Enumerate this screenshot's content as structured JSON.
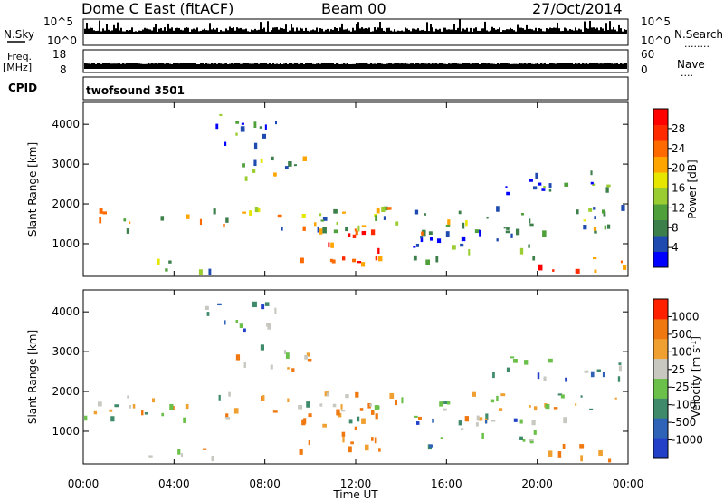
{
  "header": {
    "station": "Dome C East (fitACF)",
    "beam": "Beam 00",
    "date": "27/Oct/2014"
  },
  "left_labels": {
    "nsky": "N.Sky",
    "freq": "Freq.",
    "mhz": "[MHz]",
    "cpid": "CPID"
  },
  "right_labels": {
    "nsearch": "N.Search",
    "nave": "Nave",
    "dots": "........",
    "dots_short": "...."
  },
  "cpid_text": "twofsound 3501",
  "chart_data": [
    {
      "type": "line",
      "name": "noise-strip",
      "y_left_ticks": [
        "10^5",
        "10^0"
      ],
      "y_right_ticks": [
        "10^5",
        "10^0"
      ]
    },
    {
      "type": "line",
      "name": "frequency-strip",
      "y_left_ticks": [
        "18",
        "8"
      ],
      "y_right_ticks": [
        "60",
        "0"
      ]
    },
    {
      "type": "heatmap",
      "name": "power",
      "ylabel": "Slant Range [km]",
      "ylim": [
        180,
        4550
      ],
      "xlim": [
        0,
        24
      ],
      "yticks": [
        "1000",
        "2000",
        "3000",
        "4000"
      ],
      "colorbar": {
        "label": "Power [dB]",
        "ticks": [
          "4",
          "8",
          "12",
          "16",
          "20",
          "24",
          "28"
        ],
        "colors": [
          "#0000ff",
          "#1f4bb0",
          "#3d7f4a",
          "#4f9f3a",
          "#9acd32",
          "#e6e600",
          "#ffa500",
          "#ff6a00",
          "#ff2a00",
          "#ff0000"
        ]
      }
    },
    {
      "type": "heatmap",
      "name": "velocity",
      "ylabel": "Slant Range [km]",
      "ylim": [
        180,
        4550
      ],
      "xlim": [
        0,
        24
      ],
      "yticks": [
        "1000",
        "2000",
        "3000",
        "4000"
      ],
      "colorbar": {
        "label": "Velocity [m s",
        "label_sup": "-1",
        "label_end": "]",
        "ticks": [
          "1000",
          "500",
          "100",
          "25",
          "-25",
          "-100",
          "-500",
          "-1000"
        ],
        "colors": [
          "#2340c8",
          "#2f63b8",
          "#3e8a6a",
          "#6bc04a",
          "#c8c8c0",
          "#f0a030",
          "#f07810",
          "#ff2000"
        ]
      },
      "xlabel": "Time UT",
      "xticks": [
        "00:00",
        "04:00",
        "08:00",
        "12:00",
        "16:00",
        "20:00",
        "00:00"
      ]
    }
  ]
}
